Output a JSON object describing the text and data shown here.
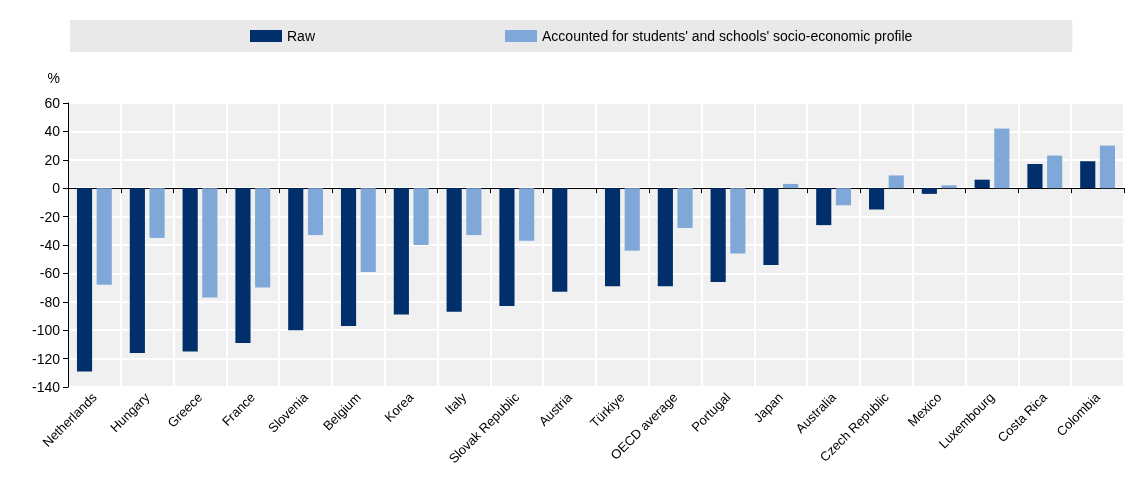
{
  "chart_data": {
    "type": "bar",
    "ylabel": "%",
    "categories": [
      "Netherlands",
      "Hungary",
      "Greece",
      "France",
      "Slovenia",
      "Belgium",
      "Korea",
      "Italy",
      "Slovak Republic",
      "Austria",
      "Türkiye",
      "OECD average",
      "Portugal",
      "Japan",
      "Australia",
      "Czech Republic",
      "Mexico",
      "Luxembourg",
      "Costa Rica",
      "Colombia"
    ],
    "series": [
      {
        "name": "Raw",
        "color": "#002f6c",
        "values": [
          -129,
          -116,
          -115,
          -109,
          -100,
          -97,
          -89,
          -87,
          -83,
          -73,
          -69,
          -69,
          -66,
          -54,
          -26,
          -15,
          -4,
          6,
          17,
          19
        ]
      },
      {
        "name": "Accounted for students' and schools' socio-economic profile",
        "color": "#7fa8d9",
        "values": [
          -68,
          -35,
          -77,
          -70,
          -33,
          -59,
          -40,
          -33,
          -37,
          null,
          -44,
          -28,
          -46,
          3,
          -12,
          9,
          2,
          42,
          23,
          30
        ]
      }
    ],
    "ylim": [
      -140,
      60
    ],
    "yticks": [
      -140,
      -120,
      -100,
      -80,
      -60,
      -40,
      -20,
      0,
      20,
      40,
      60
    ],
    "grid": true,
    "legend": "top"
  }
}
